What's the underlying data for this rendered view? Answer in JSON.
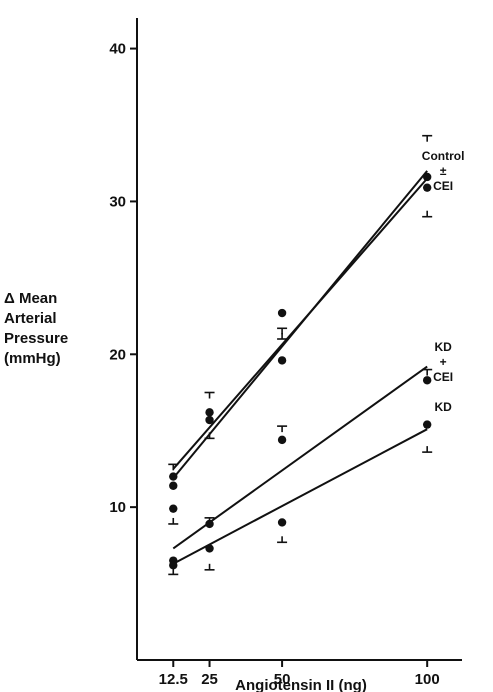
{
  "chart_data": {
    "type": "scatter",
    "title": "",
    "xlabel": "Angiotensin II (ng)",
    "ylabel_lines": [
      "Δ Mean",
      "Arterial",
      "Pressure",
      "(mmHg)"
    ],
    "xlim": [
      0,
      112
    ],
    "ylim": [
      0,
      42
    ],
    "x_ticks": [
      12.5,
      25,
      50,
      100
    ],
    "x_tick_labels": [
      "12.5",
      "25",
      "50",
      "100"
    ],
    "y_ticks": [
      10,
      20,
      30,
      40
    ],
    "y_tick_labels": [
      "10",
      "20",
      "30",
      "40"
    ],
    "grid": false,
    "series": [
      {
        "points": [
          {
            "x": 12.5,
            "y": 11.4
          },
          {
            "x": 25,
            "y": 16.2
          },
          {
            "x": 50,
            "y": 22.7
          },
          {
            "x": 100,
            "y": 31.6
          }
        ],
        "error_bars": [
          {
            "x": 12.5,
            "y": 12.8,
            "dir": "up"
          },
          {
            "x": 25,
            "y": 17.5,
            "dir": "up"
          },
          {
            "x": 50,
            "y": 21.7,
            "dir": "up"
          },
          {
            "x": 100,
            "y": 34.3,
            "dir": "up"
          }
        ],
        "fit": [
          {
            "x": 12.5,
            "y": 11.9
          },
          {
            "x": 100,
            "y": 32.0
          }
        ]
      },
      {
        "points": [
          {
            "x": 12.5,
            "y": 12.0
          },
          {
            "x": 25,
            "y": 15.7
          },
          {
            "x": 50,
            "y": 19.6
          },
          {
            "x": 100,
            "y": 30.9
          }
        ],
        "error_bars": [
          {
            "x": 25,
            "y": 14.5,
            "dir": "down"
          },
          {
            "x": 50,
            "y": 21.0,
            "dir": "down"
          },
          {
            "x": 100,
            "y": 29.0,
            "dir": "down"
          }
        ],
        "fit": [
          {
            "x": 12.5,
            "y": 12.5
          },
          {
            "x": 100,
            "y": 31.5
          }
        ]
      },
      {
        "points": [
          {
            "x": 12.5,
            "y": 9.9
          },
          {
            "x": 25,
            "y": 8.9
          },
          {
            "x": 50,
            "y": 14.4
          },
          {
            "x": 100,
            "y": 18.3
          }
        ],
        "error_bars": [
          {
            "x": 12.5,
            "y": 8.9,
            "dir": "down"
          },
          {
            "x": 25,
            "y": 9.3,
            "dir": "up"
          },
          {
            "x": 50,
            "y": 15.3,
            "dir": "up"
          },
          {
            "x": 100,
            "y": 19.0,
            "dir": "up"
          }
        ],
        "fit": [
          {
            "x": 12.5,
            "y": 7.3
          },
          {
            "x": 100,
            "y": 19.2
          }
        ]
      },
      {
        "points": [
          {
            "x": 12.5,
            "y": 6.5
          },
          {
            "x": 12.5,
            "y": 6.2
          },
          {
            "x": 25,
            "y": 7.3
          },
          {
            "x": 50,
            "y": 9.0
          },
          {
            "x": 100,
            "y": 15.4
          }
        ],
        "error_bars": [
          {
            "x": 12.5,
            "y": 5.6,
            "dir": "down"
          },
          {
            "x": 25,
            "y": 5.9,
            "dir": "down"
          },
          {
            "x": 50,
            "y": 7.7,
            "dir": "down"
          },
          {
            "x": 100,
            "y": 13.6,
            "dir": "down"
          }
        ],
        "fit": [
          {
            "x": 12.5,
            "y": 6.3
          },
          {
            "x": 100,
            "y": 15.1
          }
        ]
      }
    ],
    "annotations": [
      {
        "lines": [
          "Control",
          "±",
          "CEI"
        ],
        "x": 105.5,
        "y": 31.8
      },
      {
        "lines": [
          "KD",
          "+",
          "CEI"
        ],
        "x": 105.5,
        "y": 19.3
      },
      {
        "lines": [
          "KD"
        ],
        "x": 105.5,
        "y": 16.3
      }
    ]
  }
}
